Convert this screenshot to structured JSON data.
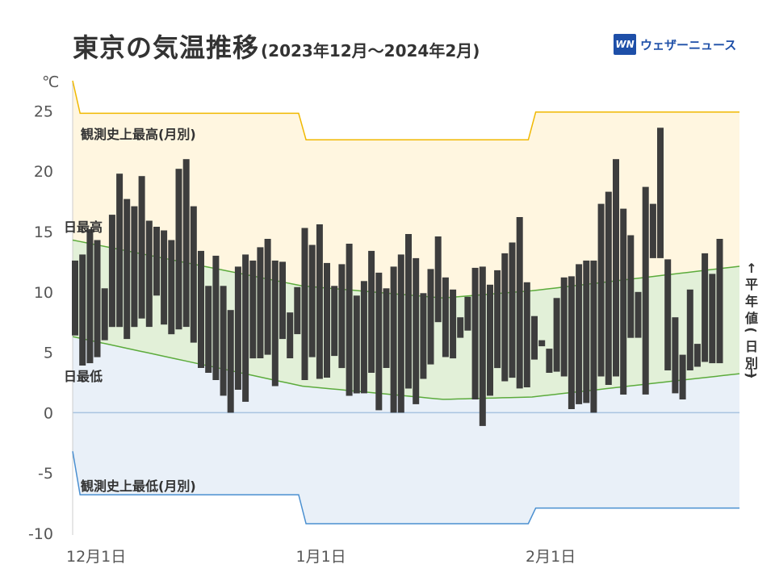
{
  "header": {
    "title": "東京の気温推移",
    "subtitle": "(2023年12月〜2024年2月)",
    "brand_logo": "WN",
    "brand_text": "ウェザーニュース"
  },
  "colors": {
    "bar": "#3d3d3d",
    "record_high_line": "#f0b800",
    "record_high_fill": "#fff6e0",
    "normal_line": "#5cab3c",
    "normal_fill": "#e2f0d8",
    "record_low_line": "#4a8fd0",
    "record_low_fill": "#e9f0f8",
    "zero_line": "#a9c4e0"
  },
  "chart_data": {
    "type": "bar",
    "subtype": "floating-range",
    "unit_label": "℃",
    "ylim": [
      -10,
      27.5
    ],
    "y_ticks": [
      25,
      20,
      15,
      10,
      5,
      0,
      -5,
      -10
    ],
    "x_ticks": [
      {
        "day": 0,
        "label": "12月1日"
      },
      {
        "day": 31,
        "label": "1月1日"
      },
      {
        "day": 62,
        "label": "2月1日"
      }
    ],
    "labels": {
      "daily_high": "日最高",
      "daily_low": "日最低",
      "record_high": "観測史上最高(月別)",
      "record_low": "観測史上最低(月別)",
      "normal": "平年値(日別)"
    },
    "record_high": {
      "Dec": 24.8,
      "Jan": 22.6,
      "Feb": 24.9
    },
    "record_low": {
      "Dec": -6.8,
      "Jan": -9.2,
      "Feb": -7.9
    },
    "normal_high": [
      [
        0,
        14.3
      ],
      [
        31,
        10.5
      ],
      [
        50,
        9.5
      ],
      [
        62,
        10.1
      ],
      [
        91,
        12.2
      ]
    ],
    "normal_low": [
      [
        0,
        6.3
      ],
      [
        31,
        2.2
      ],
      [
        50,
        1.1
      ],
      [
        62,
        1.3
      ],
      [
        91,
        3.3
      ]
    ],
    "series": [
      {
        "name": "日最高",
        "values": [
          12.6,
          13.1,
          15.2,
          14.3,
          10.3,
          16.4,
          19.8,
          17.7,
          17.1,
          19.6,
          15.9,
          15.4,
          15.1,
          14.3,
          20.2,
          21.0,
          17.1,
          13.4,
          10.5,
          13.0,
          10.5,
          8.5,
          12.1,
          13.1,
          12.6,
          13.7,
          14.4,
          12.6,
          12.5,
          8.3,
          10.4,
          15.3,
          13.9,
          15.6,
          12.4,
          10.5,
          12.3,
          14.0,
          9.7,
          10.9,
          13.4,
          11.6,
          10.3,
          12.1,
          13.1,
          14.8,
          12.8,
          9.9,
          11.9,
          14.6,
          11.2,
          10.2,
          7.9,
          9.6,
          12.0,
          12.1,
          10.6,
          11.8,
          13.2,
          14.1,
          16.2,
          10.8,
          8.0,
          6.0,
          5.3,
          9.5,
          11.2,
          11.3,
          12.3,
          12.6,
          12.6,
          17.3,
          18.3,
          21.0,
          16.9,
          14.7,
          10.0,
          18.7,
          17.3,
          23.6,
          12.7,
          7.9,
          4.8,
          10.2,
          5.7,
          13.2,
          11.5,
          14.4
        ]
      },
      {
        "name": "日最低",
        "values": [
          6.4,
          3.9,
          4.1,
          4.6,
          6.0,
          7.1,
          7.1,
          6.1,
          7.1,
          7.8,
          7.1,
          9.7,
          7.3,
          6.5,
          6.9,
          7.1,
          5.8,
          3.7,
          3.3,
          2.7,
          1.4,
          0.0,
          1.9,
          0.9,
          4.5,
          4.5,
          4.8,
          2.2,
          6.1,
          4.5,
          6.5,
          2.7,
          4.6,
          2.8,
          2.9,
          4.7,
          3.7,
          1.4,
          1.6,
          1.6,
          3.3,
          0.2,
          3.7,
          0.0,
          0.0,
          2.0,
          0.7,
          2.8,
          4.0,
          7.5,
          4.6,
          4.5,
          6.2,
          6.8,
          1.1,
          -1.1,
          1.4,
          3.7,
          2.6,
          2.9,
          2.0,
          2.1,
          4.4,
          5.5,
          3.3,
          3.4,
          3.0,
          0.3,
          0.7,
          0.8,
          0.0,
          3.0,
          2.3,
          3.0,
          1.5,
          6.2,
          6.2,
          1.5,
          12.8,
          12.8,
          3.5,
          1.6,
          1.1,
          3.5,
          3.8,
          4.2,
          4.1,
          4.1
        ]
      }
    ]
  }
}
